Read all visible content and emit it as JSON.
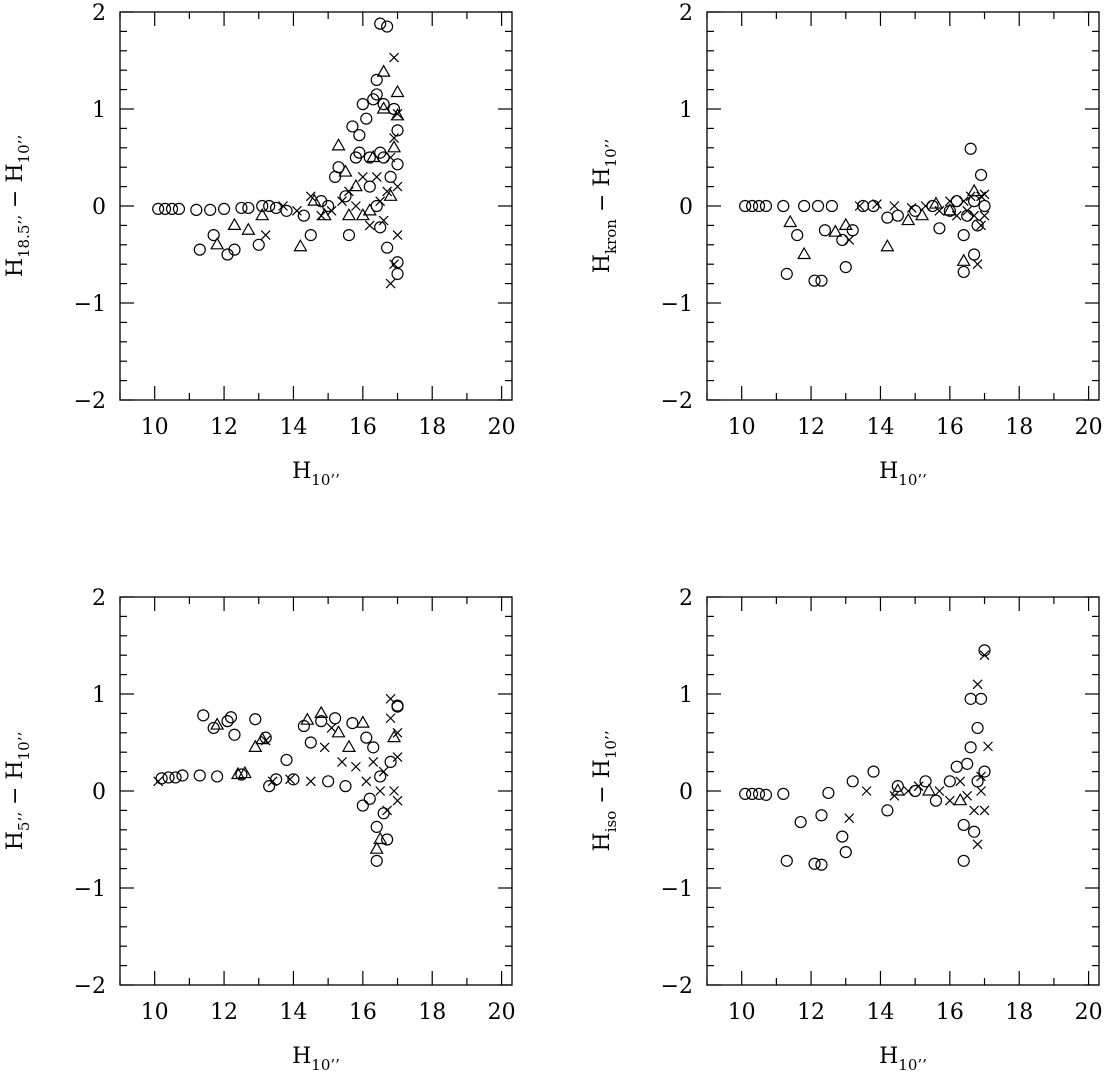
{
  "chart_data": [
    {
      "type": "scatter",
      "ylabel": [
        {
          "text": "H"
        },
        {
          "text": "18.5’’",
          "sub": true
        },
        {
          "text": " − "
        },
        {
          "text": "H"
        },
        {
          "text": "10’’",
          "sub": true
        }
      ],
      "xlabel": [
        {
          "text": "H"
        },
        {
          "text": "10’’",
          "sub": true
        }
      ],
      "xlim": [
        9,
        20.3
      ],
      "ylim": [
        -2,
        2
      ],
      "xticks": [
        10,
        12,
        14,
        16,
        18,
        20
      ],
      "xminorticks": [
        9,
        11,
        13,
        15,
        17,
        19
      ],
      "yticks": [
        {
          "value": -2,
          "label": "−2"
        },
        {
          "value": -1,
          "label": "−1"
        },
        0,
        1,
        2
      ],
      "yminorticks": [
        -1.8,
        -1.6,
        -1.4,
        -1.2,
        -0.8,
        -0.6,
        -0.4,
        -0.2,
        0.2,
        0.4,
        0.6,
        0.8,
        1.2,
        1.4,
        1.6,
        1.8
      ],
      "series": [
        {
          "marker": "circle",
          "color": "#000000",
          "x": [
            10.1,
            10.3,
            10.5,
            10.7,
            11.2,
            11.3,
            11.6,
            11.7,
            12.0,
            12.1,
            12.3,
            12.5,
            12.7,
            13.0,
            13.1,
            13.3,
            13.5,
            13.8,
            14.3,
            14.5,
            14.8,
            15.0,
            15.2,
            15.3,
            15.5,
            15.6,
            15.7,
            15.8,
            15.9,
            16.0,
            16.1,
            16.2,
            16.3,
            16.4,
            16.4,
            16.5,
            16.5,
            16.6,
            16.7,
            16.7,
            16.8,
            16.9,
            17.0,
            17.0,
            17.0,
            16.5,
            16.2,
            15.9,
            17.0,
            16.4,
            16.6
          ],
          "values": [
            -0.03,
            -0.03,
            -0.03,
            -0.03,
            -0.04,
            -0.45,
            -0.04,
            -0.3,
            -0.03,
            -0.5,
            -0.45,
            -0.02,
            -0.02,
            -0.4,
            0,
            0,
            -0.02,
            -0.05,
            -0.1,
            -0.3,
            0.05,
            0,
            0.3,
            0.4,
            0.1,
            -0.3,
            0.82,
            0.5,
            0.73,
            1.05,
            0.9,
            0.5,
            1.1,
            1.15,
            0,
            1.88,
            0.55,
            0.5,
            1.85,
            -0.43,
            0.3,
            1.0,
            0.78,
            -0.58,
            -0.7,
            -0.22,
            0.2,
            0.55,
            0.43,
            1.3,
            1.05
          ]
        },
        {
          "marker": "triangle",
          "color": "#000000",
          "x": [
            11.8,
            12.3,
            12.7,
            13.1,
            14.2,
            14.6,
            14.9,
            15.3,
            15.5,
            15.8,
            16.0,
            16.3,
            16.6,
            16.6,
            16.9,
            17.0,
            17.0,
            16.8,
            16.2,
            15.6
          ],
          "values": [
            -0.4,
            -0.2,
            -0.25,
            -0.1,
            -0.42,
            0.05,
            -0.1,
            0.62,
            0.35,
            0.2,
            -0.1,
            0.5,
            1.38,
            1.0,
            0.6,
            1.17,
            0.93,
            0.1,
            -0.05,
            -0.1
          ]
        },
        {
          "marker": "cross",
          "color": "#000000",
          "x": [
            13.2,
            13.7,
            14.1,
            14.5,
            14.8,
            15.1,
            15.4,
            15.6,
            15.8,
            16.0,
            16.2,
            16.4,
            16.5,
            16.7,
            16.8,
            16.9,
            16.9,
            17.0,
            17.0,
            16.8,
            16.9,
            17.0,
            16.6
          ],
          "values": [
            -0.3,
            0,
            -0.05,
            0.1,
            -0.1,
            -0.05,
            0.05,
            0.15,
            0,
            0.3,
            -0.2,
            0.3,
            0.05,
            0.15,
            -0.8,
            1.53,
            -0.6,
            0.95,
            -0.3,
            0.5,
            0.7,
            0.2,
            -0.15
          ]
        }
      ]
    },
    {
      "type": "scatter",
      "ylabel": [
        {
          "text": "H"
        },
        {
          "text": "kron",
          "sub": true
        },
        {
          "text": " − "
        },
        {
          "text": "H"
        },
        {
          "text": "10’’",
          "sub": true
        }
      ],
      "xlabel": [
        {
          "text": "H"
        },
        {
          "text": "10’’",
          "sub": true
        }
      ],
      "xlim": [
        9,
        20.3
      ],
      "ylim": [
        -2,
        2
      ],
      "xticks": [
        10,
        12,
        14,
        16,
        18,
        20
      ],
      "xminorticks": [
        9,
        11,
        13,
        15,
        17,
        19
      ],
      "yticks": [
        {
          "value": -2,
          "label": "−2"
        },
        {
          "value": -1,
          "label": "−1"
        },
        0,
        1,
        2
      ],
      "yminorticks": [
        -1.8,
        -1.6,
        -1.4,
        -1.2,
        -0.8,
        -0.6,
        -0.4,
        -0.2,
        0.2,
        0.4,
        0.6,
        0.8,
        1.2,
        1.4,
        1.6,
        1.8
      ],
      "series": [
        {
          "marker": "circle",
          "color": "#000000",
          "x": [
            10.1,
            10.3,
            10.5,
            10.7,
            11.2,
            11.3,
            11.6,
            11.8,
            12.1,
            12.2,
            12.3,
            12.4,
            12.6,
            12.9,
            13.0,
            13.2,
            13.5,
            13.8,
            14.2,
            14.5,
            15.0,
            15.5,
            15.7,
            16.0,
            16.2,
            16.4,
            16.4,
            16.6,
            16.7,
            16.8,
            16.9,
            17.0,
            16.5,
            16.7
          ],
          "values": [
            0,
            0,
            0,
            0,
            0,
            -0.7,
            -0.3,
            0,
            -0.77,
            0,
            -0.77,
            -0.25,
            0,
            -0.35,
            -0.63,
            -0.25,
            0,
            0,
            -0.12,
            -0.1,
            -0.05,
            0,
            -0.23,
            -0.05,
            0.05,
            -0.68,
            -0.3,
            0.59,
            -0.5,
            -0.2,
            0.32,
            0,
            -0.1,
            0.05
          ]
        },
        {
          "marker": "triangle",
          "color": "#000000",
          "x": [
            11.4,
            11.8,
            12.7,
            13.0,
            14.2,
            14.8,
            15.2,
            16.4,
            16.7,
            16.0,
            15.6
          ],
          "values": [
            -0.17,
            -0.5,
            -0.27,
            -0.2,
            -0.42,
            -0.15,
            -0.1,
            -0.57,
            0.15,
            -0.05,
            0.02
          ]
        },
        {
          "marker": "cross",
          "color": "#000000",
          "x": [
            13.1,
            13.4,
            13.9,
            14.4,
            14.9,
            15.3,
            15.7,
            16.0,
            16.2,
            16.4,
            16.5,
            16.6,
            16.8,
            16.9,
            17.0,
            17.0,
            16.9,
            16.7
          ],
          "values": [
            -0.35,
            0,
            0.02,
            0,
            -0.02,
            0,
            -0.05,
            0.05,
            -0.1,
            0.05,
            -0.05,
            0.1,
            -0.6,
            0.1,
            0.12,
            -0.1,
            -0.2,
            -0.1
          ]
        }
      ]
    },
    {
      "type": "scatter",
      "ylabel": [
        {
          "text": "H"
        },
        {
          "text": "5’’",
          "sub": true
        },
        {
          "text": " − "
        },
        {
          "text": "H"
        },
        {
          "text": "10’’",
          "sub": true
        }
      ],
      "xlabel": [
        {
          "text": "H"
        },
        {
          "text": "10’’",
          "sub": true
        }
      ],
      "xlim": [
        9,
        20.3
      ],
      "ylim": [
        -2,
        2
      ],
      "xticks": [
        10,
        12,
        14,
        16,
        18,
        20
      ],
      "xminorticks": [
        9,
        11,
        13,
        15,
        17,
        19
      ],
      "yticks": [
        {
          "value": -2,
          "label": "−2"
        },
        {
          "value": -1,
          "label": "−1"
        },
        0,
        1,
        2
      ],
      "yminorticks": [
        -1.8,
        -1.6,
        -1.4,
        -1.2,
        -0.8,
        -0.6,
        -0.4,
        -0.2,
        0.2,
        0.4,
        0.6,
        0.8,
        1.2,
        1.4,
        1.6,
        1.8
      ],
      "series": [
        {
          "marker": "circle",
          "color": "#000000",
          "x": [
            10.2,
            10.4,
            10.6,
            10.8,
            11.3,
            11.4,
            11.7,
            11.8,
            12.1,
            12.2,
            12.3,
            12.5,
            12.9,
            13.2,
            13.3,
            13.5,
            13.8,
            14.0,
            14.3,
            14.5,
            14.8,
            15.0,
            15.2,
            15.5,
            15.7,
            16.0,
            16.1,
            16.2,
            16.4,
            16.4,
            16.6,
            16.7,
            16.8,
            17.0,
            17.0,
            16.5,
            16.3
          ],
          "values": [
            0.13,
            0.14,
            0.14,
            0.16,
            0.16,
            0.78,
            0.65,
            0.15,
            0.72,
            0.76,
            0.58,
            0.17,
            0.74,
            0.55,
            0.05,
            0.12,
            0.32,
            0.12,
            0.67,
            0.5,
            0.72,
            0.1,
            0.75,
            0.05,
            0.7,
            -0.15,
            0.55,
            -0.08,
            -0.72,
            -0.37,
            -0.23,
            -0.5,
            0.3,
            0.88,
            0.87,
            0.15,
            0.45
          ]
        },
        {
          "marker": "triangle",
          "color": "#000000",
          "x": [
            11.8,
            12.4,
            12.6,
            12.9,
            13.1,
            14.4,
            14.8,
            15.3,
            15.6,
            16.0,
            16.4,
            16.5,
            16.9
          ],
          "values": [
            0.68,
            0.17,
            0.18,
            0.45,
            0.53,
            0.73,
            0.8,
            0.6,
            0.45,
            0.7,
            -0.6,
            -0.5,
            0.55
          ]
        },
        {
          "marker": "cross",
          "color": "#000000",
          "x": [
            10.1,
            13.2,
            13.4,
            13.9,
            14.5,
            14.9,
            15.1,
            15.4,
            15.8,
            16.1,
            16.3,
            16.5,
            16.7,
            16.8,
            16.8,
            16.9,
            17.0,
            17.0,
            17.0,
            16.6
          ],
          "values": [
            0.1,
            0.52,
            0.1,
            0.12,
            0.1,
            0.45,
            0.65,
            0.3,
            0.25,
            0.1,
            0.3,
            0,
            -0.2,
            0.95,
            0.75,
            0,
            0.35,
            -0.1,
            0.6,
            0.2
          ]
        }
      ]
    },
    {
      "type": "scatter",
      "ylabel": [
        {
          "text": "H"
        },
        {
          "text": "iso",
          "sub": true
        },
        {
          "text": " − "
        },
        {
          "text": "H"
        },
        {
          "text": "10’’",
          "sub": true
        }
      ],
      "xlabel": [
        {
          "text": "H"
        },
        {
          "text": "10’’",
          "sub": true
        }
      ],
      "xlim": [
        9,
        20.3
      ],
      "ylim": [
        -2,
        2
      ],
      "xticks": [
        10,
        12,
        14,
        16,
        18,
        20
      ],
      "xminorticks": [
        9,
        11,
        13,
        15,
        17,
        19
      ],
      "yticks": [
        {
          "value": -2,
          "label": "−2"
        },
        {
          "value": -1,
          "label": "−1"
        },
        0,
        1,
        2
      ],
      "yminorticks": [
        -1.8,
        -1.6,
        -1.4,
        -1.2,
        -0.8,
        -0.6,
        -0.4,
        -0.2,
        0.2,
        0.4,
        0.6,
        0.8,
        1.2,
        1.4,
        1.6,
        1.8
      ],
      "series": [
        {
          "marker": "circle",
          "color": "#000000",
          "x": [
            10.1,
            10.3,
            10.5,
            10.7,
            11.2,
            11.3,
            11.7,
            12.1,
            12.3,
            12.3,
            12.5,
            12.9,
            13.0,
            13.2,
            13.8,
            14.2,
            14.5,
            15.0,
            15.3,
            15.6,
            16.0,
            16.2,
            16.4,
            16.4,
            16.5,
            16.6,
            16.6,
            16.7,
            16.8,
            16.9,
            17.0,
            17.0,
            16.8
          ],
          "values": [
            -0.03,
            -0.03,
            -0.03,
            -0.04,
            -0.03,
            -0.72,
            -0.32,
            -0.75,
            -0.76,
            -0.25,
            -0.02,
            -0.47,
            -0.63,
            0.1,
            0.2,
            -0.2,
            0.05,
            0,
            0.1,
            -0.1,
            0.1,
            0.25,
            -0.72,
            -0.35,
            0.28,
            0.95,
            0.45,
            -0.42,
            0.65,
            0.95,
            1.45,
            0.2,
            0.1
          ]
        },
        {
          "marker": "triangle",
          "color": "#000000",
          "x": [
            14.5,
            15.4,
            16.3
          ],
          "values": [
            0,
            0,
            -0.1
          ]
        },
        {
          "marker": "cross",
          "color": "#000000",
          "x": [
            13.1,
            13.6,
            14.4,
            14.8,
            15.1,
            15.7,
            16.0,
            16.3,
            16.5,
            16.7,
            16.8,
            16.8,
            16.9,
            17.0,
            17.0,
            17.1,
            16.9
          ],
          "values": [
            -0.28,
            0,
            -0.05,
            0,
            0.05,
            0,
            -0.1,
            0.1,
            -0.05,
            -0.2,
            1.1,
            -0.55,
            0.15,
            1.4,
            -0.2,
            0.46,
            0
          ]
        }
      ]
    }
  ]
}
